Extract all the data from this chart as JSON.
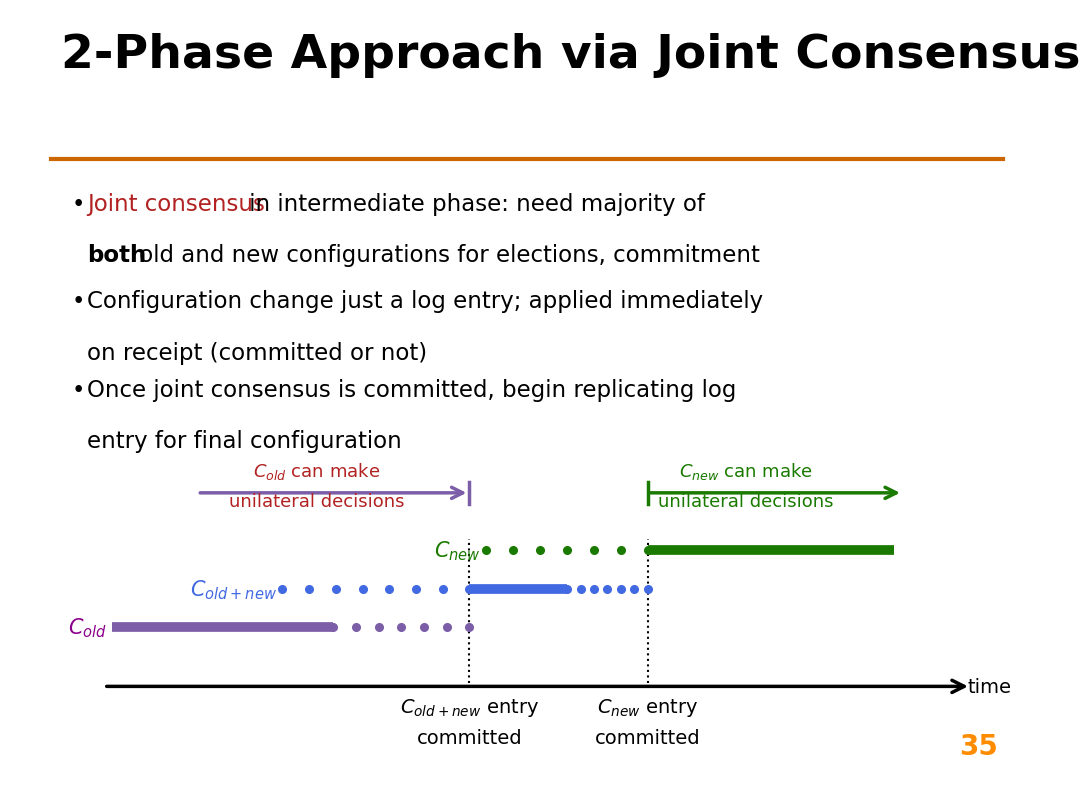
{
  "title": "2-Phase Approach via Joint Consensus",
  "title_color": "#000000",
  "title_fontsize": 34,
  "separator_color": "#CC6600",
  "bg_color": "#FFFFFF",
  "slide_number": "35",
  "slide_number_color": "#FF8C00",
  "diagram": {
    "v1": 0.42,
    "v2": 0.63,
    "cold_color": "#7B5EA7",
    "cold_new_color": "#4169E1",
    "cnew_color": "#1A7A00",
    "arrow_purple": "#7B5EA7",
    "arrow_green": "#1A7A00",
    "label_cold_color": "#8B008B",
    "label_cold_new_color": "#4169E1",
    "label_cnew_color": "#1A7A00",
    "annotation_cold_color": "#B22222",
    "annotation_cnew_color": "#1A7A00"
  }
}
